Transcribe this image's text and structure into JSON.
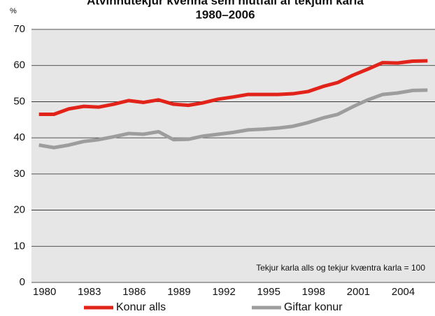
{
  "chart_data": {
    "type": "line",
    "title": "Atvinnutekjur kvenna sem hlutfall af tekjum karla",
    "subtitle": "1980–2006",
    "y_label": "%",
    "annotation": "Tekjur karla alls og tekjur kvæntra karla = 100",
    "categories": [
      "1980",
      null,
      null,
      "1983",
      null,
      null,
      "1986",
      null,
      null,
      "1989",
      null,
      null,
      "1992",
      null,
      null,
      "1995",
      null,
      null,
      "1998",
      null,
      null,
      "2001",
      null,
      null,
      "2004",
      null,
      null
    ],
    "series": [
      {
        "name": "Konur alls",
        "color": "#e2231a",
        "values": [
          46.5,
          46.5,
          48,
          48.7,
          48.5,
          49.3,
          50.3,
          49.8,
          50.5,
          49.3,
          49,
          49.7,
          50.7,
          51.3,
          52,
          52,
          52,
          52.2,
          52.8,
          54.2,
          55.3,
          57.3,
          59,
          60.8,
          60.7,
          61.2,
          61.3
        ]
      },
      {
        "name": "Giftar konur",
        "color": "#9d9d9d",
        "values": [
          38,
          37.3,
          38,
          39,
          39.5,
          40.3,
          41.2,
          41,
          41.7,
          39.5,
          39.6,
          40.5,
          41,
          41.5,
          42.2,
          42.4,
          42.7,
          43.2,
          44.2,
          45.5,
          46.5,
          48.6,
          50.5,
          52,
          52.4,
          53.1,
          53.2
        ]
      }
    ],
    "ylim": [
      0,
      70
    ],
    "yticks": [
      0,
      10,
      20,
      30,
      40,
      50,
      60,
      70
    ],
    "grid": true
  }
}
